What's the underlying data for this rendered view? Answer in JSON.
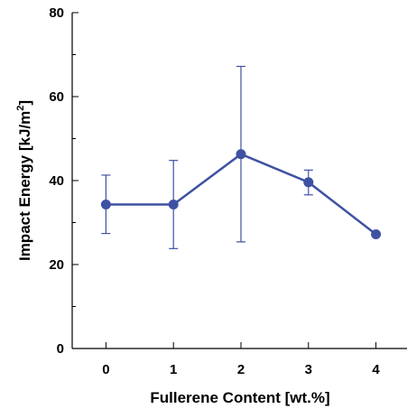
{
  "chart_data": {
    "type": "line",
    "title": "",
    "xlabel": "Fullerene Content [wt.%]",
    "ylabel_main": "Impact Energy [kJ/m",
    "ylabel_sup": "2",
    "ylabel_tail": "]",
    "x": [
      0,
      1,
      2,
      3,
      4
    ],
    "x_tick_labels": [
      "0",
      "1",
      "2",
      "3",
      "4"
    ],
    "xlim": [
      -0.5,
      4.5
    ],
    "ylim": [
      0,
      80
    ],
    "y_ticks": [
      0,
      20,
      40,
      60,
      80
    ],
    "y_tick_labels": [
      "0",
      "20",
      "40",
      "60",
      "80"
    ],
    "grid": false,
    "series": [
      {
        "values": [
          34.3,
          34.3,
          46.3,
          39.6,
          27.2
        ],
        "error_low": [
          27.4,
          23.8,
          25.4,
          36.6,
          27.2
        ],
        "error_high": [
          41.3,
          44.8,
          67.2,
          42.5,
          27.2
        ],
        "color": "#3f51a3"
      }
    ]
  }
}
